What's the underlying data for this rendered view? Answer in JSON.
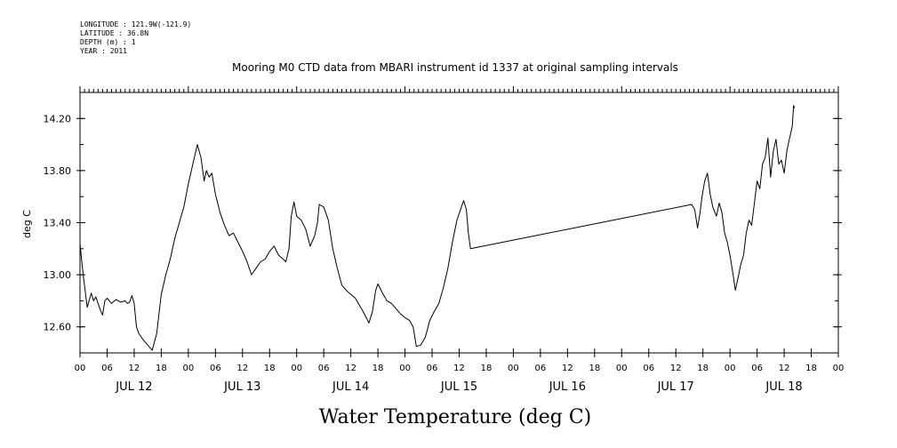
{
  "meta": {
    "longitude": "LONGITUDE : 121.9W(-121.9)",
    "latitude": "LATITUDE : 36.8N",
    "depth": "DEPTH (m) : 1",
    "year": "YEAR : 2011"
  },
  "chart_data": {
    "type": "line",
    "title": "Mooring M0 CTD data from MBARI instrument id 1337 at original sampling intervals",
    "xlabel": "Water Temperature (deg C)",
    "ylabel": "deg C",
    "ylim": [
      12.4,
      14.4
    ],
    "yticks": [
      "12.60",
      "13.00",
      "13.40",
      "13.80",
      "14.20"
    ],
    "hour_ticks": [
      "00",
      "06",
      "12",
      "18",
      "00",
      "06",
      "12",
      "18",
      "00",
      "06",
      "12",
      "18",
      "00",
      "06",
      "12",
      "18",
      "00",
      "06",
      "12",
      "18",
      "00",
      "06",
      "12",
      "18",
      "00",
      "06",
      "12",
      "18",
      "00"
    ],
    "day_labels": [
      "JUL 12",
      "JUL 13",
      "JUL 14",
      "JUL 15",
      "JUL 16",
      "JUL 17",
      "JUL 18"
    ],
    "x_unit": "hours since 2011-07-12 00:00",
    "series": [
      {
        "points": [
          [
            0,
            13.24
          ],
          [
            0.4,
            13.1
          ],
          [
            0.8,
            12.97
          ],
          [
            1.2,
            12.86
          ],
          [
            1.6,
            12.75
          ],
          [
            2.0,
            12.8
          ],
          [
            2.5,
            12.86
          ],
          [
            3.0,
            12.8
          ],
          [
            3.5,
            12.83
          ],
          [
            4.0,
            12.78
          ],
          [
            4.6,
            12.72
          ],
          [
            5.0,
            12.69
          ],
          [
            5.5,
            12.8
          ],
          [
            6.0,
            12.82
          ],
          [
            7.0,
            12.78
          ],
          [
            8.0,
            12.81
          ],
          [
            9.0,
            12.79
          ],
          [
            10.0,
            12.8
          ],
          [
            10.5,
            12.78
          ],
          [
            11.0,
            12.79
          ],
          [
            11.5,
            12.84
          ],
          [
            12.0,
            12.78
          ],
          [
            12.5,
            12.6
          ],
          [
            13.0,
            12.55
          ],
          [
            14.0,
            12.5
          ],
          [
            15.0,
            12.46
          ],
          [
            16.0,
            12.42
          ],
          [
            17.0,
            12.55
          ],
          [
            18.0,
            12.85
          ],
          [
            19.0,
            13.0
          ],
          [
            20.0,
            13.12
          ],
          [
            21.0,
            13.28
          ],
          [
            22.0,
            13.4
          ],
          [
            23.0,
            13.52
          ],
          [
            24.0,
            13.7
          ],
          [
            25.0,
            13.85
          ],
          [
            26.0,
            14.0
          ],
          [
            26.8,
            13.9
          ],
          [
            27.5,
            13.72
          ],
          [
            28.0,
            13.8
          ],
          [
            28.6,
            13.75
          ],
          [
            29.2,
            13.78
          ],
          [
            30.0,
            13.62
          ],
          [
            31.0,
            13.48
          ],
          [
            32.0,
            13.38
          ],
          [
            33.0,
            13.3
          ],
          [
            34.0,
            13.32
          ],
          [
            35.0,
            13.25
          ],
          [
            36.0,
            13.18
          ],
          [
            37.0,
            13.1
          ],
          [
            38.0,
            13.0
          ],
          [
            39.0,
            13.05
          ],
          [
            40.0,
            13.1
          ],
          [
            41.0,
            13.12
          ],
          [
            42.0,
            13.18
          ],
          [
            43.0,
            13.22
          ],
          [
            44.0,
            13.15
          ],
          [
            45.0,
            13.12
          ],
          [
            45.6,
            13.1
          ],
          [
            46.3,
            13.2
          ],
          [
            46.8,
            13.45
          ],
          [
            47.4,
            13.56
          ],
          [
            48.0,
            13.45
          ],
          [
            49.0,
            13.42
          ],
          [
            50.0,
            13.35
          ],
          [
            51.0,
            13.22
          ],
          [
            52.0,
            13.3
          ],
          [
            52.6,
            13.4
          ],
          [
            53.0,
            13.54
          ],
          [
            54.0,
            13.52
          ],
          [
            55.0,
            13.42
          ],
          [
            56.0,
            13.2
          ],
          [
            57.0,
            13.05
          ],
          [
            58.0,
            12.92
          ],
          [
            59.0,
            12.88
          ],
          [
            60.0,
            12.85
          ],
          [
            61.0,
            12.82
          ],
          [
            62.0,
            12.76
          ],
          [
            63.0,
            12.7
          ],
          [
            64.0,
            12.63
          ],
          [
            64.8,
            12.72
          ],
          [
            65.5,
            12.88
          ],
          [
            66.0,
            12.93
          ],
          [
            67.0,
            12.86
          ],
          [
            68.0,
            12.8
          ],
          [
            69.0,
            12.78
          ],
          [
            70.0,
            12.74
          ],
          [
            71.0,
            12.7
          ],
          [
            72.0,
            12.67
          ],
          [
            73.0,
            12.65
          ],
          [
            73.8,
            12.6
          ],
          [
            74.5,
            12.45
          ],
          [
            75.5,
            12.46
          ],
          [
            76.5,
            12.52
          ],
          [
            77.5,
            12.65
          ],
          [
            78.5,
            12.72
          ],
          [
            79.5,
            12.78
          ],
          [
            80.5,
            12.9
          ],
          [
            81.5,
            13.05
          ],
          [
            82.5,
            13.25
          ],
          [
            83.5,
            13.42
          ],
          [
            84.5,
            13.52
          ],
          [
            85.0,
            13.57
          ],
          [
            85.6,
            13.5
          ],
          [
            86.0,
            13.33
          ],
          [
            86.5,
            13.2
          ],
          [
            135.5,
            13.54
          ],
          [
            136.2,
            13.5
          ],
          [
            136.8,
            13.36
          ],
          [
            137.3,
            13.46
          ],
          [
            137.8,
            13.6
          ],
          [
            138.4,
            13.72
          ],
          [
            139.0,
            13.78
          ],
          [
            139.6,
            13.62
          ],
          [
            140.2,
            13.52
          ],
          [
            141.0,
            13.45
          ],
          [
            141.6,
            13.55
          ],
          [
            142.2,
            13.48
          ],
          [
            142.8,
            13.32
          ],
          [
            143.4,
            13.25
          ],
          [
            144.0,
            13.15
          ],
          [
            144.6,
            13.02
          ],
          [
            145.2,
            12.88
          ],
          [
            145.8,
            12.98
          ],
          [
            146.4,
            13.08
          ],
          [
            147.0,
            13.15
          ],
          [
            147.6,
            13.32
          ],
          [
            148.2,
            13.42
          ],
          [
            148.8,
            13.38
          ],
          [
            149.4,
            13.55
          ],
          [
            150.0,
            13.72
          ],
          [
            150.6,
            13.66
          ],
          [
            151.2,
            13.85
          ],
          [
            151.8,
            13.9
          ],
          [
            152.4,
            14.05
          ],
          [
            153.0,
            13.75
          ],
          [
            153.6,
            13.95
          ],
          [
            154.2,
            14.04
          ],
          [
            154.8,
            13.85
          ],
          [
            155.4,
            13.88
          ],
          [
            156.0,
            13.78
          ],
          [
            156.6,
            13.95
          ],
          [
            157.2,
            14.05
          ],
          [
            157.8,
            14.14
          ],
          [
            158.1,
            14.3
          ],
          [
            158.3,
            14.28
          ]
        ]
      }
    ]
  }
}
